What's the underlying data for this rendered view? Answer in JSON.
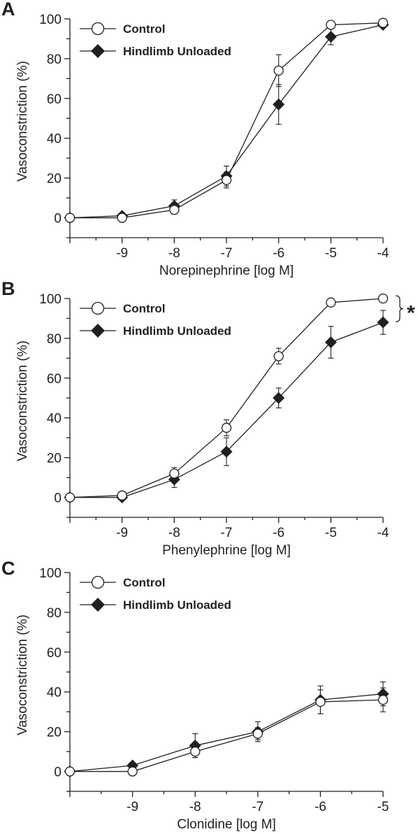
{
  "chart_data": [
    {
      "type": "line",
      "panel": "A",
      "xlabel": "Norepinephrine [log M]",
      "ylabel": "Vasoconstriction (%)",
      "ylim": [
        -10,
        100
      ],
      "yticks": [
        0,
        20,
        40,
        60,
        80,
        100
      ],
      "xticks": [
        -9,
        -8,
        -7,
        -6,
        -5,
        -4
      ],
      "xlim": [
        -10,
        -4
      ],
      "legend_position": "top-left",
      "series": [
        {
          "name": "Control",
          "marker": "open-circle",
          "x": [
            -10,
            -9,
            -8,
            -7,
            -6,
            -5,
            -4
          ],
          "y": [
            0,
            0,
            4,
            19,
            74,
            97,
            98
          ],
          "err": [
            0,
            1,
            2,
            4,
            8,
            1,
            1
          ]
        },
        {
          "name": "Hindlimb Unloaded",
          "marker": "filled-diamond",
          "x": [
            -10,
            -9,
            -8,
            -7,
            -6,
            -5,
            -4
          ],
          "y": [
            0,
            1,
            6,
            21,
            57,
            91,
            97
          ],
          "err": [
            0,
            1,
            3,
            5,
            10,
            4,
            1
          ]
        }
      ]
    },
    {
      "type": "line",
      "panel": "B",
      "xlabel": "Phenylephrine [log M]",
      "ylabel": "Vasoconstriction (%)",
      "ylim": [
        -10,
        100
      ],
      "yticks": [
        0,
        20,
        40,
        60,
        80,
        100
      ],
      "xticks": [
        -9,
        -8,
        -7,
        -6,
        -5,
        -4
      ],
      "xlim": [
        -10,
        -4
      ],
      "legend_position": "top-left",
      "annotation": "*",
      "series": [
        {
          "name": "Control",
          "marker": "open-circle",
          "x": [
            -10,
            -9,
            -8,
            -7,
            -6,
            -5,
            -4
          ],
          "y": [
            0,
            1,
            12,
            35,
            71,
            98,
            100
          ],
          "err": [
            0,
            1,
            3,
            4,
            4,
            2,
            1
          ]
        },
        {
          "name": "Hindlimb Unloaded",
          "marker": "filled-diamond",
          "x": [
            -10,
            -9,
            -8,
            -7,
            -6,
            -5,
            -4
          ],
          "y": [
            0,
            0,
            9,
            23,
            50,
            78,
            88
          ],
          "err": [
            0,
            1,
            4,
            7,
            5,
            8,
            6
          ]
        }
      ]
    },
    {
      "type": "line",
      "panel": "C",
      "xlabel": "Clonidine [log M]",
      "ylabel": "Vasoconstriction (%)",
      "ylim": [
        -10,
        100
      ],
      "yticks": [
        0,
        20,
        40,
        60,
        80,
        100
      ],
      "xticks": [
        -9,
        -8,
        -7,
        -6,
        -5
      ],
      "xlim": [
        -10,
        -5
      ],
      "legend_position": "top-left",
      "series": [
        {
          "name": "Control",
          "marker": "open-circle",
          "x": [
            -10,
            -9,
            -8,
            -7,
            -6,
            -5
          ],
          "y": [
            0,
            0,
            10,
            19,
            35,
            36
          ],
          "err": [
            0,
            1,
            3,
            3,
            6,
            6
          ]
        },
        {
          "name": "Hindlimb Unloaded",
          "marker": "filled-diamond",
          "x": [
            -10,
            -9,
            -8,
            -7,
            -6,
            -5
          ],
          "y": [
            0,
            3,
            13,
            20,
            36,
            39
          ],
          "err": [
            0,
            1,
            6,
            5,
            7,
            6
          ]
        }
      ]
    }
  ]
}
